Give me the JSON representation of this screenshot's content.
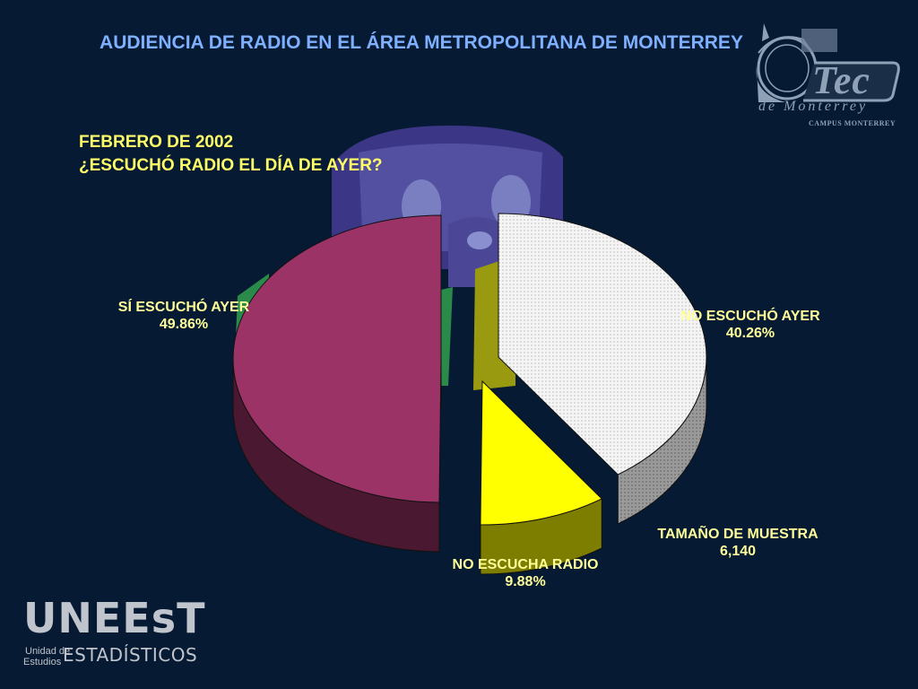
{
  "header": {
    "title": "AUDIENCIA DE RADIO EN EL ÁREA METROPOLITANA DE MONTERREY",
    "subtitle_line1": "FEBRERO DE 2002",
    "subtitle_line2": "¿ESCUCHÓ RADIO EL DÍA DE AYER?"
  },
  "chart_data": {
    "type": "pie",
    "title": "AUDIENCIA DE RADIO EN EL ÁREA METROPOLITANA DE MONTERREY",
    "slices": [
      {
        "label": "SÍ ESCUCHÓ AYER",
        "value_label": "49.86%",
        "value": 49.86,
        "color": "#9b3366",
        "side_color": "#4a1830"
      },
      {
        "label": "NO ESCUCHÓ AYER",
        "value_label": "40.26%",
        "value": 40.26,
        "color": "#f2f2f2",
        "side_color": "#8c8c8c"
      },
      {
        "label": "NO ESCUCHA RADIO",
        "value_label": "9.88%",
        "value": 9.88,
        "color": "#ffff00",
        "side_color": "#7d7d00"
      }
    ],
    "legend": "none"
  },
  "sample": {
    "label": "TAMAÑO DE MUESTRA",
    "value": "6,140"
  },
  "logos": {
    "tec_word": "Tec",
    "tec_sub": "de Monterrey",
    "tec_campus": "CAMPUS MONTERREY",
    "unit_word": "UNEEsT",
    "unit_small1": "Unidad de",
    "unit_small2": "Estudios",
    "unit_est": "ESTADÍSTICOS"
  },
  "colors": {
    "background": "#061a33",
    "title": "#7fb0ff",
    "subtitle": "#ffff66",
    "labels": "#ffff99"
  }
}
